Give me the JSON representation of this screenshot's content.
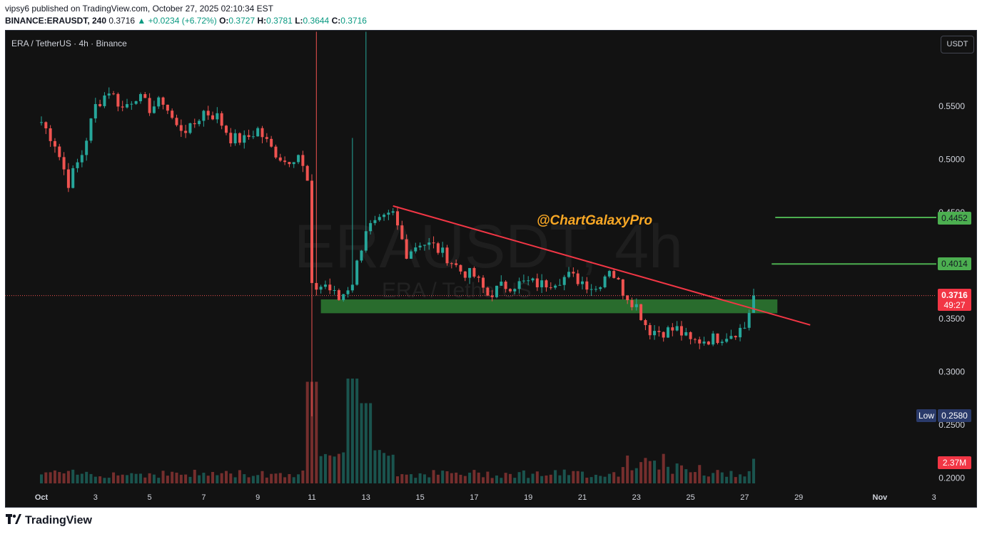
{
  "header": {
    "line1": "vipsy6 published on TradingView.com, October 27, 2025 02:10:34 EST",
    "symbol": "BINANCE:ERAUSDT, 240",
    "last": "0.3716",
    "change": "+0.0234 (+6.72%)",
    "o_label": "O:",
    "o": "0.3727",
    "h_label": "H:",
    "h": "0.3781",
    "l_label": "L:",
    "l": "0.3644",
    "c_label": "C:",
    "c": "0.3716"
  },
  "legend_title": "ERA / TetherUS · 4h · Binance",
  "currency_button": "USDT",
  "watermark": {
    "big": "ERAUSDT, 4h",
    "small": "ERA / TetherUS"
  },
  "annotation": "@ChartGalaxyPro",
  "price_tags": {
    "current": "0.3716",
    "countdown": "49:27",
    "level1": "0.4452",
    "level2": "0.4014",
    "low_label": "Low",
    "low_value": "0.2580",
    "volume": "2.37M"
  },
  "footer": "TradingView",
  "colors": {
    "up": "#26a69a",
    "down": "#ef5350",
    "level": "#4caf50",
    "trend": "#f23645",
    "zone": "#2e7d32",
    "annotation": "#f9a825"
  },
  "chart_data": {
    "type": "candlestick",
    "y_axis": {
      "ticks": [
        "0.5500",
        "0.5000",
        "0.4500",
        "0.3500",
        "0.3000",
        "0.2500",
        "0.2000"
      ],
      "range": [
        0.19,
        0.59
      ]
    },
    "x_axis": {
      "ticks": [
        "Oct",
        "3",
        "5",
        "7",
        "9",
        "11",
        "13",
        "15",
        "17",
        "19",
        "21",
        "23",
        "25",
        "27",
        "29",
        "Nov",
        "3"
      ]
    },
    "levels": [
      0.4452,
      0.4014
    ],
    "current_price": 0.3716,
    "low": 0.258,
    "support_zone": [
      0.355,
      0.368
    ],
    "trendline": [
      {
        "date": "Oct 14",
        "price": 0.456
      },
      {
        "date": "Oct 28",
        "price": 0.352
      }
    ],
    "anchors": [
      [
        "Oct 1 00:00",
        0.535
      ],
      [
        "Oct 1 12:00",
        0.515
      ],
      [
        "Oct 2 00:00",
        0.478
      ],
      [
        "Oct 2 12:00",
        0.505
      ],
      [
        "Oct 3 00:00",
        0.55
      ],
      [
        "Oct 3 12:00",
        0.565
      ],
      [
        "Oct 4 00:00",
        0.548
      ],
      [
        "Oct 4 12:00",
        0.56
      ],
      [
        "Oct 5 00:00",
        0.548
      ],
      [
        "Oct 5 12:00",
        0.555
      ],
      [
        "Oct 6 00:00",
        0.53
      ],
      [
        "Oct 6 12:00",
        0.528
      ],
      [
        "Oct 7 00:00",
        0.545
      ],
      [
        "Oct 7 12:00",
        0.54
      ],
      [
        "Oct 8 00:00",
        0.52
      ],
      [
        "Oct 8 12:00",
        0.518
      ],
      [
        "Oct 9 00:00",
        0.528
      ],
      [
        "Oct 9 12:00",
        0.51
      ],
      [
        "Oct 10 00:00",
        0.498
      ],
      [
        "Oct 10 12:00",
        0.505
      ],
      [
        "Oct 10 20:00",
        0.478
      ],
      [
        "Oct 11 00:00",
        0.378
      ],
      [
        "Oct 11 12:00",
        0.382
      ],
      [
        "Oct 12 00:00",
        0.368
      ],
      [
        "Oct 12 12:00",
        0.385
      ],
      [
        "Oct 13 00:00",
        0.435
      ],
      [
        "Oct 13 12:00",
        0.44
      ],
      [
        "Oct 14 00:00",
        0.448
      ],
      [
        "Oct 14 12:00",
        0.412
      ],
      [
        "Oct 15 00:00",
        0.422
      ],
      [
        "Oct 15 12:00",
        0.418
      ],
      [
        "Oct 16 00:00",
        0.408
      ],
      [
        "Oct 16 12:00",
        0.395
      ],
      [
        "Oct 17 00:00",
        0.39
      ],
      [
        "Oct 17 12:00",
        0.372
      ],
      [
        "Oct 18 00:00",
        0.38
      ],
      [
        "Oct 18 12:00",
        0.382
      ],
      [
        "Oct 19 00:00",
        0.384
      ],
      [
        "Oct 19 12:00",
        0.382
      ],
      [
        "Oct 20 00:00",
        0.386
      ],
      [
        "Oct 20 12:00",
        0.39
      ],
      [
        "Oct 21 00:00",
        0.385
      ],
      [
        "Oct 21 12:00",
        0.378
      ],
      [
        "Oct 22 00:00",
        0.398
      ],
      [
        "Oct 22 12:00",
        0.376
      ],
      [
        "Oct 23 00:00",
        0.362
      ],
      [
        "Oct 23 08:00",
        0.345
      ],
      [
        "Oct 23 12:00",
        0.339
      ],
      [
        "Oct 24 00:00",
        0.338
      ],
      [
        "Oct 24 12:00",
        0.34
      ],
      [
        "Oct 25 00:00",
        0.328
      ],
      [
        "Oct 25 12:00",
        0.33
      ],
      [
        "Oct 26 00:00",
        0.332
      ],
      [
        "Oct 26 12:00",
        0.336
      ],
      [
        "Oct 27 00:00",
        0.342
      ],
      [
        "Oct 27 08:00",
        0.3716
      ]
    ]
  }
}
